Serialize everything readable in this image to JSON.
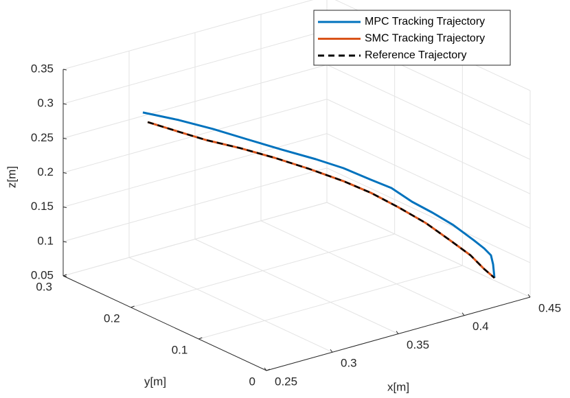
{
  "chart_data": {
    "type": "line3d",
    "xlabel": "x[m]",
    "ylabel": "y[m]",
    "zlabel": "z[m]",
    "xlim": [
      0.25,
      0.45
    ],
    "ylim": [
      0,
      0.3
    ],
    "zlim": [
      0.05,
      0.35
    ],
    "xticks": [
      0.25,
      0.3,
      0.35,
      0.4,
      0.45
    ],
    "yticks": [
      0,
      0.1,
      0.2,
      0.3
    ],
    "zticks": [
      0.05,
      0.1,
      0.15,
      0.2,
      0.25,
      0.3,
      0.35
    ],
    "grid": true,
    "legend_location": "northeast",
    "series": [
      {
        "name": "MPC Tracking Trajectory",
        "color": "#0072BD",
        "linestyle": "solid",
        "x": [
          0.2847,
          0.3067,
          0.3276,
          0.3433,
          0.3591,
          0.3748,
          0.388,
          0.4011,
          0.4116,
          0.4195,
          0.4274,
          0.4379,
          0.4458,
          0.4485,
          0.447,
          0.4481,
          0.4486
        ],
        "y": [
          0.25,
          0.24,
          0.23,
          0.21,
          0.19,
          0.17,
          0.155,
          0.14,
          0.13,
          0.115,
          0.1,
          0.09,
          0.075,
          0.065,
          0.052,
          0.051,
          0.05
        ],
        "z": [
          0.2917,
          0.2736,
          0.2541,
          0.2399,
          0.2257,
          0.2125,
          0.1994,
          0.1824,
          0.1693,
          0.1521,
          0.1388,
          0.1199,
          0.1005,
          0.0918,
          0.0886,
          0.0754,
          0.0557
        ]
      },
      {
        "name": "SMC Tracking Trajectory",
        "color": "#D95319",
        "linestyle": "solid",
        "x": [
          0.2884,
          0.3067,
          0.3223,
          0.3381,
          0.3539,
          0.3696,
          0.3854,
          0.396,
          0.4065,
          0.4171,
          0.4302,
          0.4407,
          0.4459,
          0.4486
        ],
        "y": [
          0.25,
          0.24,
          0.23,
          0.21,
          0.19,
          0.17,
          0.15,
          0.13,
          0.11,
          0.09,
          0.08,
          0.07,
          0.06,
          0.05
        ],
        "z": [
          0.2758,
          0.2567,
          0.2409,
          0.2298,
          0.2165,
          0.2013,
          0.1842,
          0.1707,
          0.1534,
          0.1339,
          0.1066,
          0.0837,
          0.0656,
          0.0557
        ]
      },
      {
        "name": "Reference Trajectory",
        "color": "#000000",
        "linestyle": "dashed",
        "x": [
          0.2884,
          0.3067,
          0.3223,
          0.3381,
          0.3539,
          0.3696,
          0.3854,
          0.396,
          0.4065,
          0.4171,
          0.4302,
          0.4407,
          0.4459,
          0.4486
        ],
        "y": [
          0.25,
          0.24,
          0.23,
          0.21,
          0.19,
          0.17,
          0.15,
          0.13,
          0.11,
          0.09,
          0.08,
          0.07,
          0.06,
          0.05
        ],
        "z": [
          0.2758,
          0.2567,
          0.2409,
          0.2298,
          0.2165,
          0.2013,
          0.1842,
          0.1707,
          0.1534,
          0.1339,
          0.1066,
          0.0837,
          0.0656,
          0.0557
        ]
      }
    ]
  }
}
